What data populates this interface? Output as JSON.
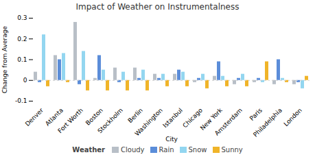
{
  "chart_data": {
    "type": "bar",
    "title": "Impact of Weather on Instrumentalness",
    "x_label": "City",
    "y_label": "Change from Average",
    "categories": [
      "Denver",
      "Atlanta",
      "Fort Worth",
      "Boston",
      "Stockholm",
      "Berlin",
      "Washington",
      "Istanbul",
      "Chicago",
      "New York",
      "Amsterdam",
      "Paris",
      "Philadelphia",
      "London"
    ],
    "series": [
      {
        "name": "Cloudy",
        "color": "#b8bfc7",
        "values": [
          0.04,
          0.12,
          0.28,
          0.01,
          0.06,
          0.06,
          0.03,
          0.03,
          -0.01,
          0.02,
          -0.02,
          -0.01,
          -0.02,
          -0.02
        ]
      },
      {
        "name": "Rain",
        "color": "#5b8dd9",
        "values": [
          -0.01,
          0.1,
          -0.02,
          0.12,
          -0.01,
          0.01,
          0.01,
          0.05,
          0.01,
          0.09,
          0.01,
          0.01,
          0.1,
          -0.01
        ]
      },
      {
        "name": "Snow",
        "color": "#93d6f0",
        "values": [
          0.22,
          0.13,
          0.14,
          0.05,
          0.04,
          0.05,
          0.03,
          0.04,
          0.03,
          0.02,
          0.03,
          -0.01,
          0.01,
          -0.04
        ]
      },
      {
        "name": "Sunny",
        "color": "#f0b429",
        "values": [
          -0.03,
          -0.01,
          -0.05,
          -0.05,
          -0.05,
          -0.05,
          -0.03,
          -0.03,
          -0.04,
          -0.03,
          -0.03,
          0.09,
          -0.01,
          0.02
        ]
      }
    ],
    "ylim": [
      -0.1,
      0.3
    ],
    "yticks": [
      -0.1,
      0,
      0.1,
      0.2,
      0.3
    ],
    "grid": false,
    "legend": "bottom",
    "legend_title": "Weather"
  }
}
